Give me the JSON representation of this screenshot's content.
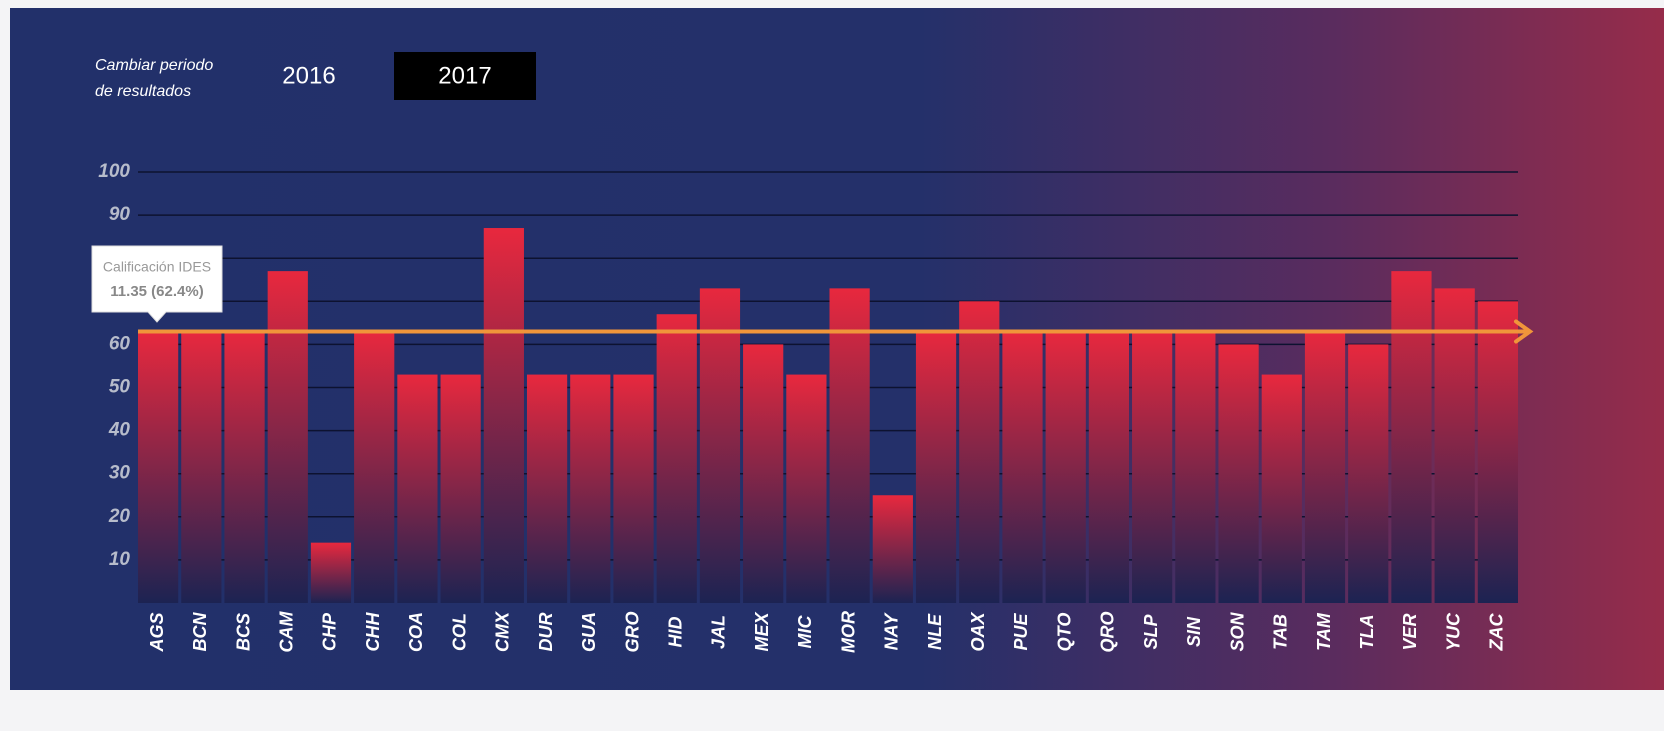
{
  "controls": {
    "caption_lines": [
      "Cambiar periodo",
      "de resultados"
    ],
    "periods": [
      "2016",
      "2017"
    ],
    "selected": 1
  },
  "chart_data": {
    "type": "bar",
    "categories": [
      "AGS",
      "BCN",
      "BCS",
      "CAM",
      "CHP",
      "CHH",
      "COA",
      "COL",
      "CMX",
      "DUR",
      "GUA",
      "GRO",
      "HID",
      "JAL",
      "MEX",
      "MIC",
      "MOR",
      "NAY",
      "NLE",
      "OAX",
      "PUE",
      "QTO",
      "QRO",
      "SLP",
      "SIN",
      "SON",
      "TAB",
      "TAM",
      "TLA",
      "VER",
      "YUC",
      "ZAC"
    ],
    "values": [
      63,
      63,
      63,
      77,
      14,
      63,
      53,
      53,
      87,
      53,
      53,
      53,
      67,
      73,
      60,
      53,
      73,
      25,
      63,
      70,
      63,
      63,
      63,
      63,
      63,
      60,
      53,
      63,
      60,
      77,
      73,
      70
    ],
    "color": "#e8283e",
    "ylim": [
      0,
      100
    ],
    "yticks": [
      10,
      20,
      30,
      40,
      50,
      60,
      70,
      80,
      90,
      100
    ],
    "grid": true,
    "reference_line": {
      "value": 63,
      "color": "#f0953a"
    },
    "tooltip": {
      "title": "Calificación IDES",
      "value": "11.35 (62.4%)"
    }
  }
}
